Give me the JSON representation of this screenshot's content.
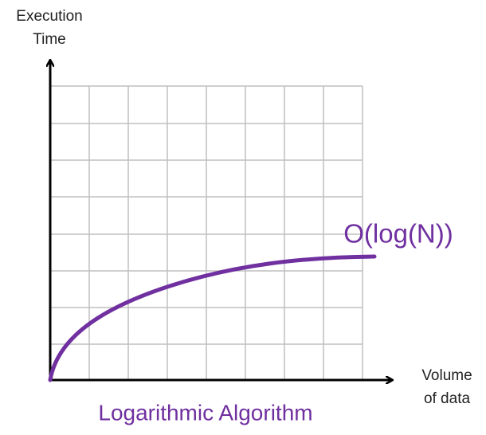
{
  "y_axis_label": [
    "Execution",
    "Time"
  ],
  "x_axis_label": [
    "Volume",
    "of data"
  ],
  "curve_label": "O(log(N))",
  "title": "Logarithmic Algorithm"
}
